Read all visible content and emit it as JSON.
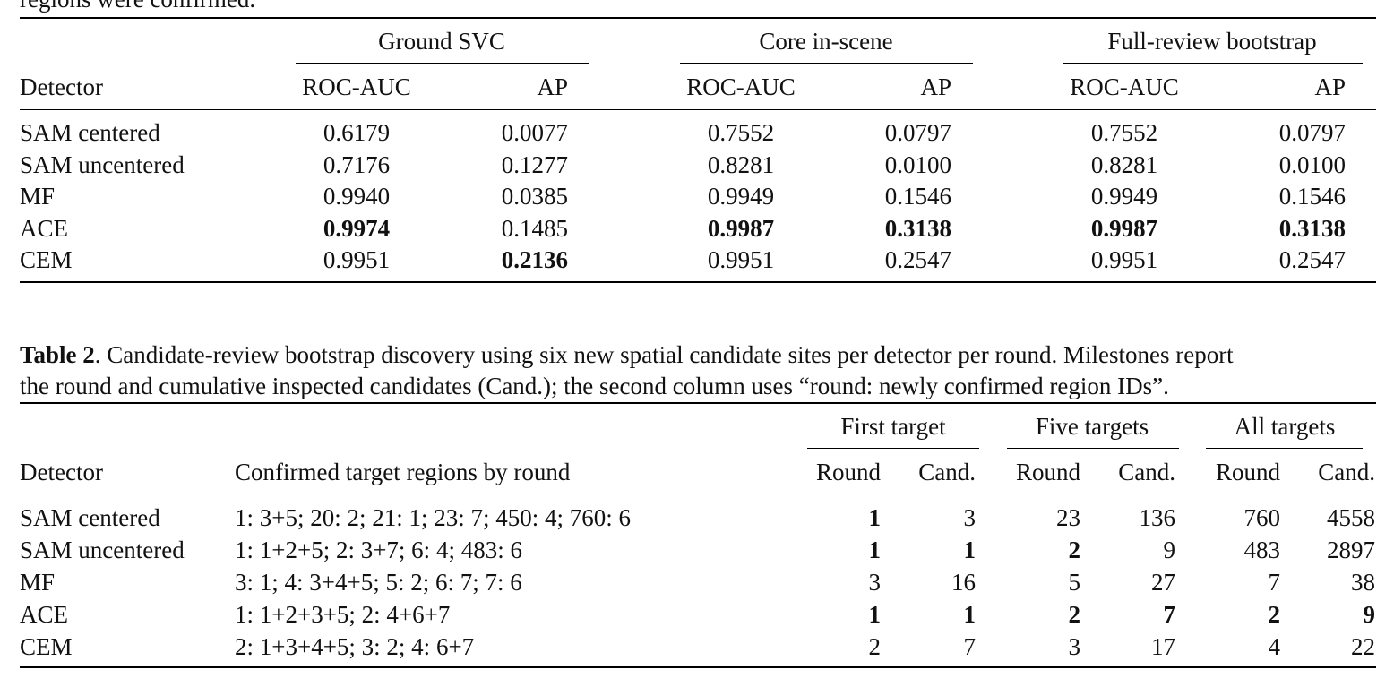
{
  "prev_caption_tail": "regions were confirmed.",
  "table1": {
    "groups": [
      "Ground SVC",
      "Core in-scene",
      "Full-review bootstrap"
    ],
    "detector_header": "Detector",
    "metric_headers": [
      "ROC-AUC",
      "AP",
      "ROC-AUC",
      "AP",
      "ROC-AUC",
      "AP"
    ],
    "rows": [
      {
        "detector": "SAM centered",
        "v": [
          "0.6179",
          "0.0077",
          "0.7552",
          "0.0797",
          "0.7552",
          "0.0797"
        ],
        "bold": [
          false,
          false,
          false,
          false,
          false,
          false
        ]
      },
      {
        "detector": "SAM uncentered",
        "v": [
          "0.7176",
          "0.1277",
          "0.8281",
          "0.0100",
          "0.8281",
          "0.0100"
        ],
        "bold": [
          false,
          false,
          false,
          false,
          false,
          false
        ]
      },
      {
        "detector": "MF",
        "v": [
          "0.9940",
          "0.0385",
          "0.9949",
          "0.1546",
          "0.9949",
          "0.1546"
        ],
        "bold": [
          false,
          false,
          false,
          false,
          false,
          false
        ]
      },
      {
        "detector": "ACE",
        "v": [
          "0.9974",
          "0.1485",
          "0.9987",
          "0.3138",
          "0.9987",
          "0.3138"
        ],
        "bold": [
          true,
          false,
          true,
          true,
          true,
          true
        ]
      },
      {
        "detector": "CEM",
        "v": [
          "0.9951",
          "0.2136",
          "0.9951",
          "0.2547",
          "0.9951",
          "0.2547"
        ],
        "bold": [
          false,
          true,
          false,
          false,
          false,
          false
        ]
      }
    ]
  },
  "table2": {
    "caption_label": "Table 2",
    "caption_line1": ". Candidate-review bootstrap discovery using six new spatial candidate sites per detector per round. Milestones report",
    "caption_line2": "the round and cumulative inspected candidates (Cand.); the second column uses “round: newly confirmed region IDs”.",
    "groups": [
      "First target",
      "Five targets",
      "All targets"
    ],
    "detector_header": "Detector",
    "regions_header": "Confirmed target regions by round",
    "sub_headers": [
      "Round",
      "Cand.",
      "Round",
      "Cand.",
      "Round",
      "Cand."
    ],
    "rows": [
      {
        "detector": "SAM centered",
        "regions": "1: 3+5; 20: 2; 21: 1; 23: 7; 450: 4; 760: 6",
        "v": [
          "1",
          "3",
          "23",
          "136",
          "760",
          "4558"
        ],
        "bold": [
          true,
          false,
          false,
          false,
          false,
          false
        ]
      },
      {
        "detector": "SAM uncentered",
        "regions": "1: 1+2+5; 2: 3+7; 6: 4; 483: 6",
        "v": [
          "1",
          "1",
          "2",
          "9",
          "483",
          "2897"
        ],
        "bold": [
          true,
          true,
          true,
          false,
          false,
          false
        ]
      },
      {
        "detector": "MF",
        "regions": "3: 1; 4: 3+4+5; 5: 2; 6: 7; 7: 6",
        "v": [
          "3",
          "16",
          "5",
          "27",
          "7",
          "38"
        ],
        "bold": [
          false,
          false,
          false,
          false,
          false,
          false
        ]
      },
      {
        "detector": "ACE",
        "regions": "1: 1+2+3+5; 2: 4+6+7",
        "v": [
          "1",
          "1",
          "2",
          "7",
          "2",
          "9"
        ],
        "bold": [
          true,
          true,
          true,
          true,
          true,
          true
        ]
      },
      {
        "detector": "CEM",
        "regions": "2: 1+3+4+5; 3: 2; 4: 6+7",
        "v": [
          "2",
          "7",
          "3",
          "17",
          "4",
          "22"
        ],
        "bold": [
          false,
          false,
          false,
          false,
          false,
          false
        ]
      }
    ]
  }
}
